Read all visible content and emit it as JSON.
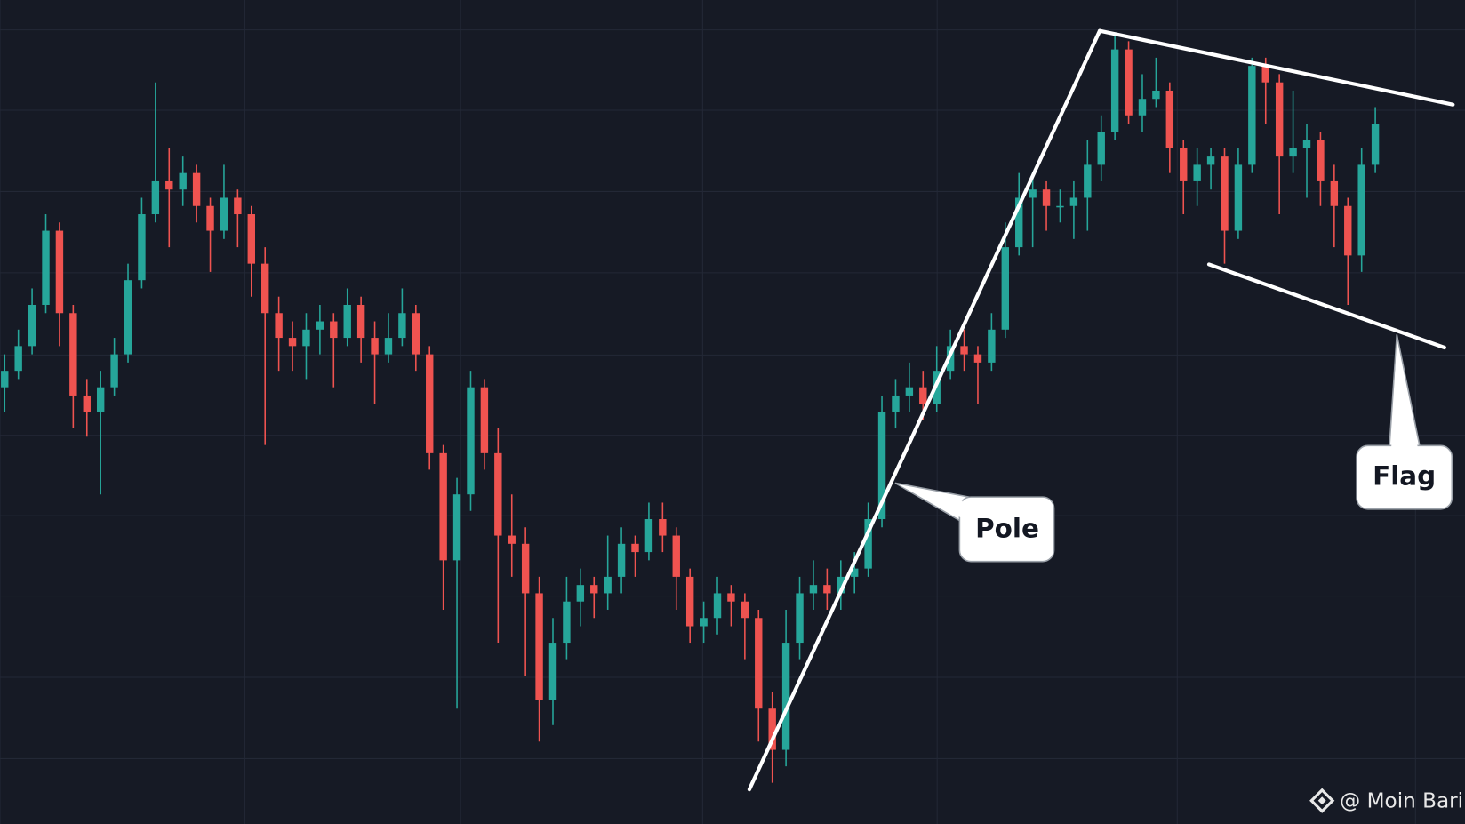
{
  "chart_data": {
    "type": "candlestick",
    "up_color": "#26a69a",
    "down_color": "#ef5350",
    "ylim": [
      0,
      100
    ],
    "candles": [
      [
        53,
        57,
        50,
        55
      ],
      [
        55,
        60,
        54,
        58
      ],
      [
        58,
        65,
        57,
        63
      ],
      [
        63,
        74,
        62,
        72
      ],
      [
        72,
        73,
        58,
        62
      ],
      [
        62,
        63,
        48,
        52
      ],
      [
        52,
        54,
        47,
        50
      ],
      [
        50,
        55,
        40,
        53
      ],
      [
        53,
        59,
        52,
        57
      ],
      [
        57,
        68,
        56,
        66
      ],
      [
        66,
        76,
        65,
        74
      ],
      [
        74,
        90,
        73,
        78
      ],
      [
        78,
        82,
        70,
        77
      ],
      [
        77,
        81,
        75,
        79
      ],
      [
        79,
        80,
        73,
        75
      ],
      [
        75,
        76,
        67,
        72
      ],
      [
        72,
        80,
        71,
        76
      ],
      [
        76,
        77,
        70,
        74
      ],
      [
        74,
        75,
        64,
        68
      ],
      [
        68,
        70,
        46,
        62
      ],
      [
        62,
        64,
        55,
        59
      ],
      [
        59,
        61,
        55,
        58
      ],
      [
        58,
        62,
        54,
        60
      ],
      [
        60,
        63,
        57,
        61
      ],
      [
        61,
        62,
        53,
        59
      ],
      [
        59,
        65,
        58,
        63
      ],
      [
        63,
        64,
        56,
        59
      ],
      [
        59,
        61,
        51,
        57
      ],
      [
        57,
        62,
        56,
        59
      ],
      [
        59,
        65,
        58,
        62
      ],
      [
        62,
        63,
        55,
        57
      ],
      [
        57,
        58,
        43,
        45
      ],
      [
        45,
        46,
        26,
        32
      ],
      [
        32,
        42,
        14,
        40
      ],
      [
        40,
        55,
        38,
        53
      ],
      [
        53,
        54,
        43,
        45
      ],
      [
        45,
        48,
        22,
        35
      ],
      [
        35,
        40,
        30,
        34
      ],
      [
        34,
        36,
        18,
        28
      ],
      [
        28,
        30,
        10,
        15
      ],
      [
        15,
        25,
        12,
        22
      ],
      [
        22,
        30,
        20,
        27
      ],
      [
        27,
        31,
        24,
        29
      ],
      [
        29,
        30,
        25,
        28
      ],
      [
        28,
        35,
        26,
        30
      ],
      [
        30,
        36,
        28,
        34
      ],
      [
        34,
        35,
        30,
        33
      ],
      [
        33,
        39,
        32,
        37
      ],
      [
        37,
        39,
        33,
        35
      ],
      [
        35,
        36,
        26,
        30
      ],
      [
        30,
        31,
        22,
        24
      ],
      [
        24,
        27,
        22,
        25
      ],
      [
        25,
        30,
        23,
        28
      ],
      [
        28,
        29,
        24,
        27
      ],
      [
        27,
        28,
        20,
        25
      ],
      [
        25,
        26,
        10,
        14
      ],
      [
        14,
        16,
        5,
        9
      ],
      [
        9,
        26,
        7,
        22
      ],
      [
        22,
        30,
        20,
        28
      ],
      [
        28,
        32,
        26,
        29
      ],
      [
        29,
        31,
        26,
        28
      ],
      [
        28,
        32,
        26,
        30
      ],
      [
        30,
        33,
        28,
        31
      ],
      [
        31,
        39,
        30,
        37
      ],
      [
        37,
        52,
        36,
        50
      ],
      [
        50,
        54,
        48,
        52
      ],
      [
        52,
        56,
        50,
        53
      ],
      [
        53,
        55,
        49,
        51
      ],
      [
        51,
        58,
        50,
        55
      ],
      [
        55,
        60,
        54,
        58
      ],
      [
        58,
        60,
        55,
        57
      ],
      [
        57,
        58,
        51,
        56
      ],
      [
        56,
        62,
        55,
        60
      ],
      [
        60,
        73,
        59,
        70
      ],
      [
        70,
        79,
        69,
        76
      ],
      [
        76,
        79,
        70,
        77
      ],
      [
        77,
        78,
        72,
        75
      ],
      [
        75,
        77,
        73,
        75
      ],
      [
        75,
        78,
        71,
        76
      ],
      [
        76,
        83,
        72,
        80
      ],
      [
        80,
        86,
        78,
        84
      ],
      [
        84,
        96,
        83,
        94
      ],
      [
        94,
        95,
        85,
        86
      ],
      [
        86,
        91,
        84,
        88
      ],
      [
        88,
        93,
        87,
        89
      ],
      [
        89,
        90,
        79,
        82
      ],
      [
        82,
        83,
        74,
        78
      ],
      [
        78,
        82,
        75,
        80
      ],
      [
        80,
        82,
        77,
        81
      ],
      [
        81,
        82,
        68,
        72
      ],
      [
        72,
        82,
        71,
        80
      ],
      [
        80,
        93,
        79,
        92
      ],
      [
        92,
        93,
        85,
        90
      ],
      [
        90,
        91,
        74,
        81
      ],
      [
        81,
        89,
        79,
        82
      ],
      [
        82,
        85,
        76,
        83
      ],
      [
        83,
        84,
        75,
        78
      ],
      [
        78,
        80,
        70,
        75
      ],
      [
        75,
        76,
        63,
        69
      ],
      [
        69,
        82,
        67,
        80
      ],
      [
        80,
        87,
        79,
        85
      ]
    ],
    "annotations": [
      "Pole",
      "Flag"
    ],
    "watermark": "@ Moin Bari"
  }
}
